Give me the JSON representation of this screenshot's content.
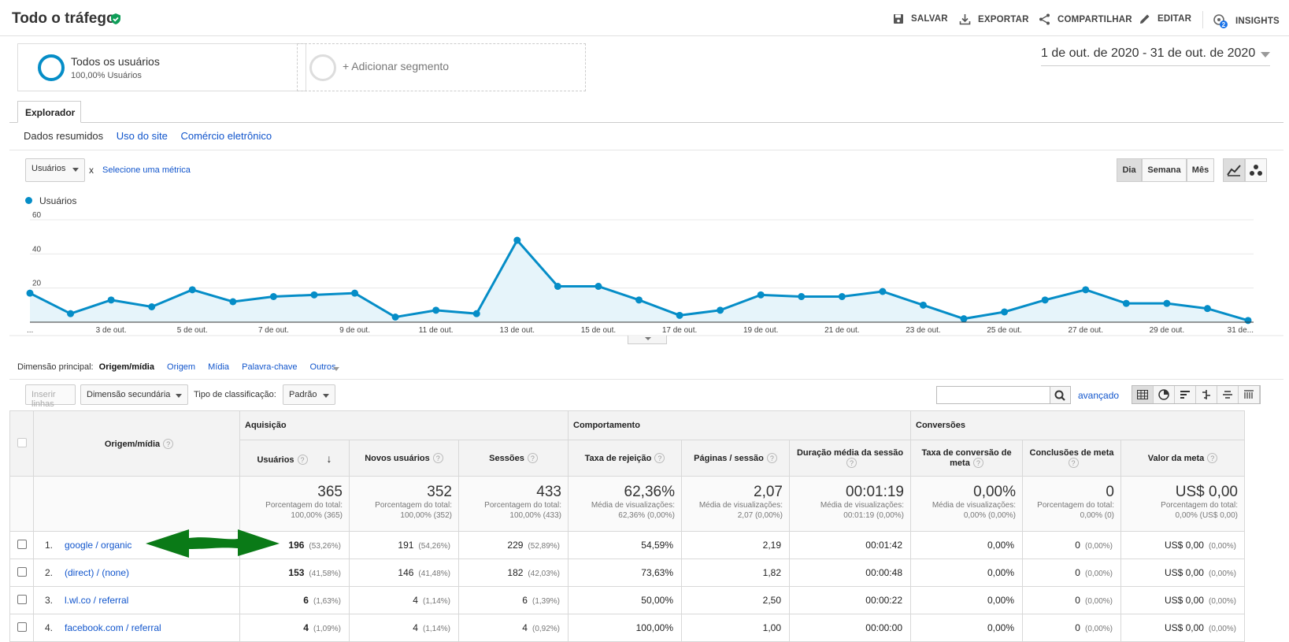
{
  "header": {
    "title": "Todo o tráfego",
    "actions": {
      "save": "SALVAR",
      "export": "EXPORTAR",
      "share": "COMPARTILHAR",
      "edit": "EDITAR",
      "insights": "INSIGHTS",
      "insights_badge": "2"
    }
  },
  "segments": {
    "active_name": "Todos os usuários",
    "active_sub": "100,00% Usuários",
    "add": "+ Adicionar segmento"
  },
  "date_range": "1 de out. de 2020 - 31 de out. de 2020",
  "tabs": {
    "explorer": "Explorador"
  },
  "subtabs": [
    "Dados resumidos",
    "Uso do site",
    "Comércio eletrônico"
  ],
  "metric": {
    "selected": "Usuários",
    "close": "x",
    "select_other": "Selecione uma métrica"
  },
  "granularity": [
    "Dia",
    "Semana",
    "Mês"
  ],
  "chart_data": {
    "type": "line",
    "title": "",
    "legend": "Usuários",
    "color": "#058dc7",
    "x": [
      "1 de out.",
      "2 de out.",
      "3 de out.",
      "4 de out.",
      "5 de out.",
      "6 de out.",
      "7 de out.",
      "8 de out.",
      "9 de out.",
      "10 de out.",
      "11 de out.",
      "12 de out.",
      "13 de out.",
      "14 de out.",
      "15 de out.",
      "16 de out.",
      "17 de out.",
      "18 de out.",
      "19 de out.",
      "20 de out.",
      "21 de out.",
      "22 de out.",
      "23 de out.",
      "24 de out.",
      "25 de out.",
      "26 de out.",
      "27 de out.",
      "28 de out.",
      "29 de out.",
      "30 de out.",
      "31 de out."
    ],
    "values": [
      17,
      5,
      13,
      9,
      19,
      12,
      15,
      16,
      17,
      3,
      7,
      5,
      48,
      21,
      21,
      13,
      4,
      7,
      16,
      15,
      15,
      18,
      10,
      2,
      6,
      13,
      19,
      11,
      11,
      8,
      1
    ],
    "tick_labels": [
      "...",
      "3 de out.",
      "5 de out.",
      "7 de out.",
      "9 de out.",
      "11 de out.",
      "13 de out.",
      "15 de out.",
      "17 de out.",
      "19 de out.",
      "21 de out.",
      "23 de out.",
      "25 de out.",
      "27 de out.",
      "29 de out.",
      "31 de..."
    ],
    "y_ticks": [
      "20",
      "40",
      "60"
    ],
    "ylim": [
      0,
      60
    ],
    "grid": true
  },
  "dimension": {
    "label": "Dimensão principal:",
    "active": "Origem/mídia",
    "options": [
      "Origem",
      "Mídia",
      "Palavra-chave",
      "Outros"
    ]
  },
  "toolbar": {
    "insert_rows": "Inserir linhas",
    "secondary_dim": "Dimensão secundária",
    "sort_label": "Tipo de classificação:",
    "sort_value": "Padrão",
    "search_placeholder": "",
    "advanced": "avançado"
  },
  "table": {
    "groups": {
      "acq": "Aquisição",
      "beh": "Comportamento",
      "conv": "Conversões"
    },
    "dim_header": "Origem/mídia",
    "headers": [
      "Usuários",
      "Novos usuários",
      "Sessões",
      "Taxa de rejeição",
      "Páginas / sessão",
      "Duração média da sessão",
      "Taxa de conversão de meta",
      "Conclusões de meta",
      "Valor da meta"
    ],
    "totals": [
      {
        "v": "365",
        "l1": "Porcentagem do total:",
        "l2": "100,00% (365)"
      },
      {
        "v": "352",
        "l1": "Porcentagem do total:",
        "l2": "100,00% (352)"
      },
      {
        "v": "433",
        "l1": "Porcentagem do total:",
        "l2": "100,00% (433)"
      },
      {
        "v": "62,36%",
        "l1": "Média de visualizações:",
        "l2": "62,36% (0,00%)"
      },
      {
        "v": "2,07",
        "l1": "Média de visualizações:",
        "l2": "2,07 (0,00%)"
      },
      {
        "v": "00:01:19",
        "l1": "Média de visualizações:",
        "l2": "00:01:19 (0,00%)"
      },
      {
        "v": "0,00%",
        "l1": "Média de visualizações:",
        "l2": "0,00% (0,00%)"
      },
      {
        "v": "0",
        "l1": "Porcentagem do total:",
        "l2": "0,00% (0)"
      },
      {
        "v": "US$ 0,00",
        "l1": "Porcentagem do total:",
        "l2": "0,00% (US$ 0,00)"
      }
    ],
    "rows": [
      {
        "n": "1.",
        "src": "google / organic",
        "users": "196",
        "users_p": "(53,26%)",
        "new": "191",
        "new_p": "(54,26%)",
        "sess": "229",
        "sess_p": "(52,89%)",
        "bounce": "54,59%",
        "pps": "2,19",
        "dur": "00:01:42",
        "conv": "0,00%",
        "goal": "0",
        "goal_p": "(0,00%)",
        "val": "US$ 0,00",
        "val_p": "(0,00%)"
      },
      {
        "n": "2.",
        "src": "(direct) / (none)",
        "users": "153",
        "users_p": "(41,58%)",
        "new": "146",
        "new_p": "(41,48%)",
        "sess": "182",
        "sess_p": "(42,03%)",
        "bounce": "73,63%",
        "pps": "1,82",
        "dur": "00:00:48",
        "conv": "0,00%",
        "goal": "0",
        "goal_p": "(0,00%)",
        "val": "US$ 0,00",
        "val_p": "(0,00%)"
      },
      {
        "n": "3.",
        "src": "l.wl.co / referral",
        "users": "6",
        "users_p": "(1,63%)",
        "new": "4",
        "new_p": "(1,14%)",
        "sess": "6",
        "sess_p": "(1,39%)",
        "bounce": "50,00%",
        "pps": "2,50",
        "dur": "00:00:22",
        "conv": "0,00%",
        "goal": "0",
        "goal_p": "(0,00%)",
        "val": "US$ 0,00",
        "val_p": "(0,00%)"
      },
      {
        "n": "4.",
        "src": "facebook.com / referral",
        "users": "4",
        "users_p": "(1,09%)",
        "new": "4",
        "new_p": "(1,14%)",
        "sess": "4",
        "sess_p": "(0,92%)",
        "bounce": "100,00%",
        "pps": "1,00",
        "dur": "00:00:00",
        "conv": "0,00%",
        "goal": "0",
        "goal_p": "(0,00%)",
        "val": "US$ 0,00",
        "val_p": "(0,00%)"
      }
    ]
  }
}
